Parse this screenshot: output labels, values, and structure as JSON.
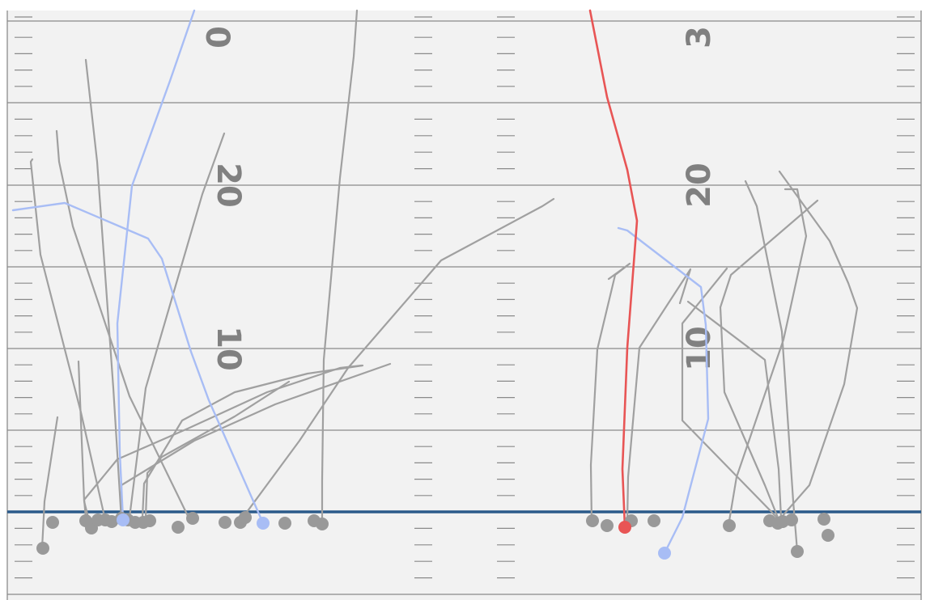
{
  "field": {
    "yard_numbers_left": [
      "20",
      "10"
    ],
    "yard_numbers_right": [
      "20",
      "10"
    ],
    "yard_numbers_top_left": "0",
    "yard_numbers_top_right": "3",
    "colors": {
      "turf": "#f2f2f2",
      "line": "#8a8a8a",
      "line_of_scrimmage": "#2b5a8a",
      "player_gray": "#9a9a9a",
      "ball_carrier": "#e85555",
      "highlight": "#a8bdf5"
    }
  }
}
